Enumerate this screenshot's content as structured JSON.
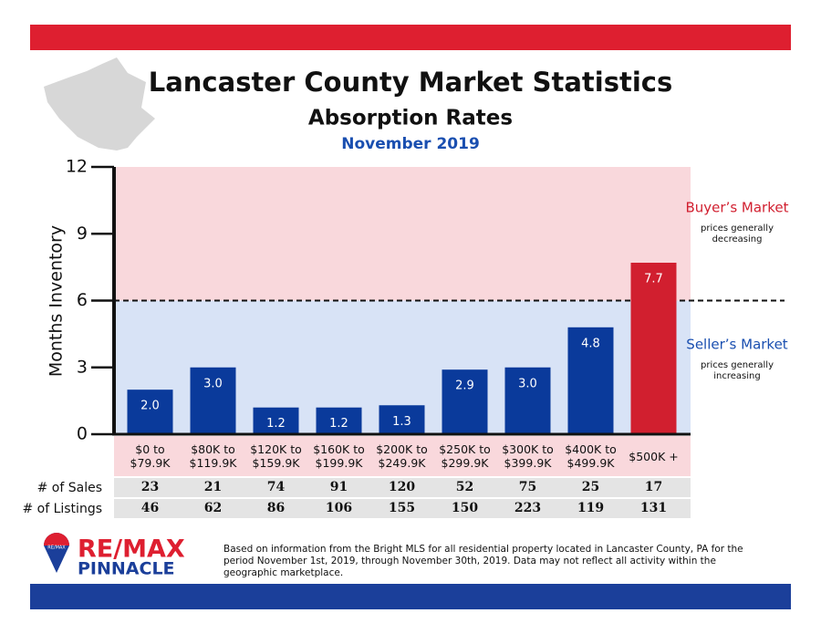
{
  "chart_data": {
    "type": "bar",
    "title": "Lancaster County Market Statistics",
    "subtitle": "Absorption Rates",
    "date": "November 2019",
    "ylabel": "Months Inventory",
    "categories": [
      "$0 to $79.9K",
      "$80K to $119.9K",
      "$120K to $159.9K",
      "$160K to $199.9K",
      "$200K to $249.9K",
      "$250K to $299.9K",
      "$300K to $399.9K",
      "$400K to $499.9K",
      "$500K +"
    ],
    "values": [
      2,
      3,
      1.2,
      1.2,
      1.3,
      2.9,
      3,
      4.8,
      7.7
    ],
    "value_labels": [
      "2.0",
      "3.0",
      "1.2",
      "1.2",
      "1.3",
      "2.9",
      "3.0",
      "4.8",
      "7.7"
    ],
    "colors": [
      "#0a3a9b",
      "#0a3a9b",
      "#0a3a9b",
      "#0a3a9b",
      "#0a3a9b",
      "#0a3a9b",
      "#0a3a9b",
      "#0a3a9b",
      "#d11f2f"
    ],
    "ylim": [
      0,
      12
    ],
    "yticks": [
      0,
      3,
      6,
      9,
      12
    ],
    "threshold": 6,
    "annotations": [
      {
        "title": "Buyer’s Market",
        "note": "prices generally decreasing",
        "color": "#d11f2f"
      },
      {
        "title": "Seller’s Market",
        "note": "prices generally increasing",
        "color": "#1a4fb0"
      }
    ],
    "table": {
      "row_labels": [
        "# of Sales",
        "# of Listings"
      ],
      "rows": [
        [
          23,
          21,
          74,
          91,
          120,
          52,
          75,
          25,
          17
        ],
        [
          46,
          62,
          86,
          106,
          155,
          150,
          223,
          119,
          131
        ]
      ]
    }
  },
  "logo": {
    "brand": "RE/MAX",
    "office": "PINNACLE",
    "badge": "RE/MAX"
  },
  "footnote": "Based on information from the Bright MLS for all residential property located in Lancaster County, PA for the period November 1st, 2019, through November 30th, 2019.  Data may not reflect all activity within the geographic marketplace."
}
